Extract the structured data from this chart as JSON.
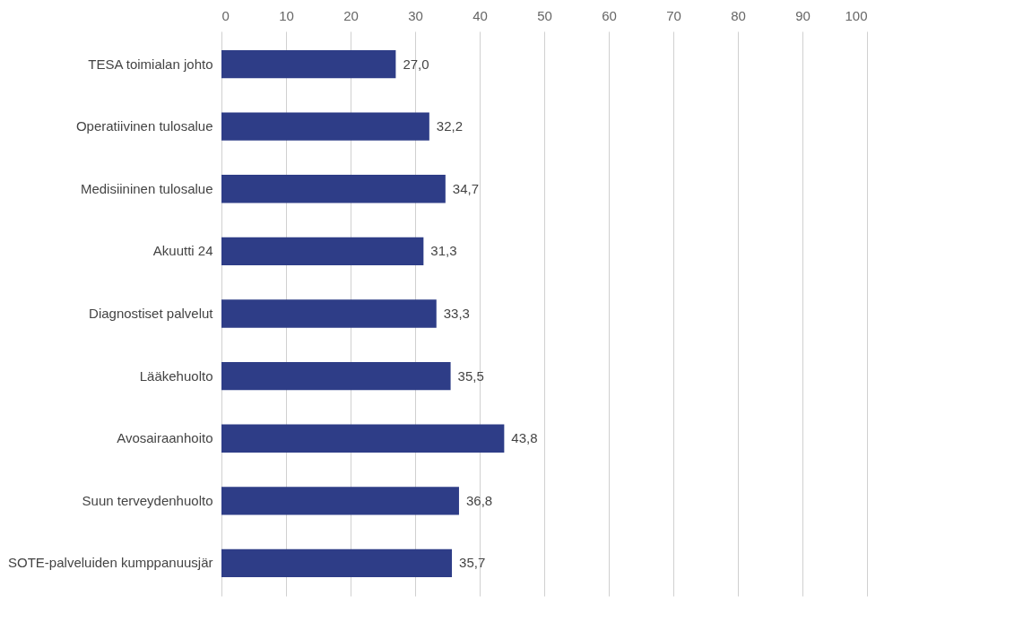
{
  "chart_data": {
    "type": "bar",
    "orientation": "horizontal",
    "categories": [
      "TESA toimialan johto",
      "Operatiivinen tulosalue",
      "Medisiininen tulosalue",
      "Akuutti 24",
      "Diagnostiset palvelut",
      "Lääkehuolto",
      "Avosairaanhoito",
      "Suun terveydenhuolto",
      "SOTE-palveluiden kumppanuusjär"
    ],
    "values": [
      27.0,
      32.2,
      34.7,
      31.3,
      33.3,
      35.5,
      43.8,
      36.8,
      35.7
    ],
    "value_labels": [
      "27,0",
      "32,2",
      "34,7",
      "31,3",
      "33,3",
      "35,5",
      "43,8",
      "36,8",
      "35,7"
    ],
    "color": "#2e3d87",
    "xlim": [
      0,
      100
    ],
    "xticks": [
      0,
      10,
      20,
      30,
      40,
      50,
      60,
      70,
      80,
      90,
      100
    ],
    "grid": "x"
  }
}
